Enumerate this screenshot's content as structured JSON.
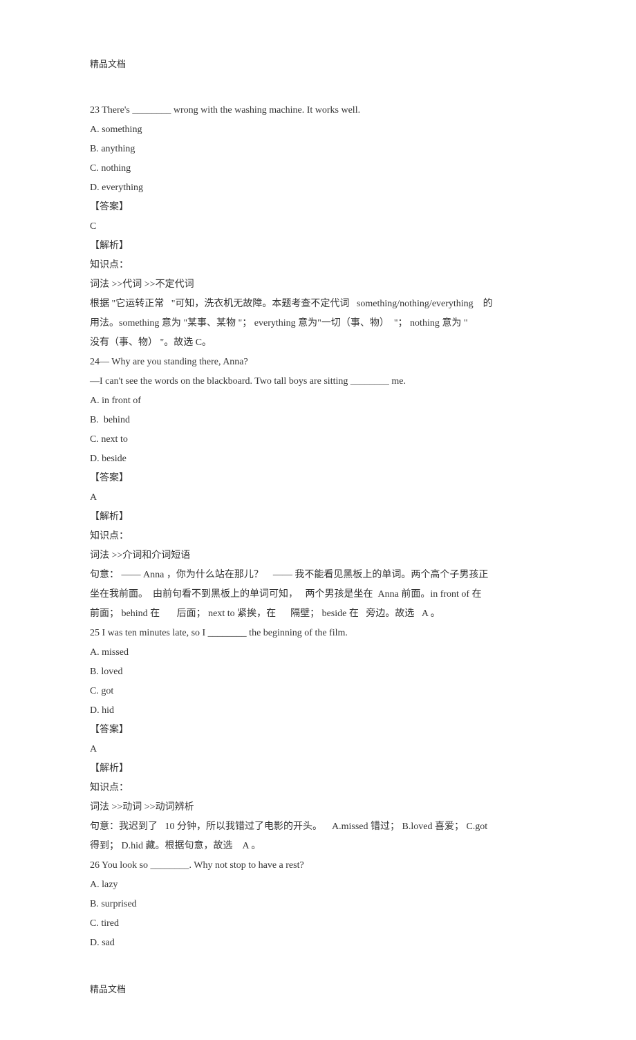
{
  "header": {
    "label": "精品文档"
  },
  "footer": {
    "label": "精品文档"
  },
  "q23": {
    "stem": "23 There's ________ wrong with the washing machine. It works well.",
    "a": "A. something",
    "b": "B. anything",
    "c": "C. nothing",
    "d": "D. everything",
    "ans_label": "【答案】",
    "ans": "C",
    "exp_label": "【解析】",
    "kp_label": "知识点：",
    "kp": "词法 >>代词 >>不定代词",
    "exp_line1": "根据 \"它运转正常   \"可知，洗衣机无故障。本题考查不定代词   something/nothing/everything    的",
    "exp_line2": "用法。something 意为 \"某事、某物 \"； everything 意为\"一切（事、物）  \"； nothing 意为 \"",
    "exp_line3": "没有（事、物） \"。故选 C。"
  },
  "q24": {
    "stem1": "24— Why are you standing there, Anna?",
    "stem2": "—I can't see the words on the blackboard. Two tall boys are sitting ________ me.",
    "a": "A. in front of",
    "b": "B.  behind",
    "c": "C. next to",
    "d": "D. beside",
    "ans_label": "【答案】",
    "ans": "A",
    "exp_label": "【解析】",
    "kp_label": "知识点：",
    "kp": "词法 >>介词和介词短语",
    "exp_line1": "句意： —— Anna ，你为什么站在那儿？    —— 我不能看见黑板上的单词。两个高个子男孩正",
    "exp_line2": "坐在我前面。  由前句看不到黑板上的单词可知，   两个男孩是坐在  Anna 前面。in front of 在",
    "exp_line3": "前面； behind 在       后面； next to 紧挨，在      隔壁； beside 在   旁边。故选   A 。"
  },
  "q25": {
    "stem": "25 I was ten minutes late, so I ________ the beginning of the film.",
    "a": "A. missed",
    "b": "B. loved",
    "c": "C. got",
    "d": "D. hid",
    "ans_label": "【答案】",
    "ans": "A",
    "exp_label": "【解析】",
    "kp_label": "知识点：",
    "kp": "词法 >>动词 >>动词辨析",
    "exp_line1": "句意：我迟到了   10 分钟，所以我错过了电影的开头。    A.missed 错过； B.loved 喜爱； C.got",
    "exp_line2": "得到； D.hid 藏。根据句意，故选    A 。"
  },
  "q26": {
    "stem": "26 You look so ________. Why not stop to have a rest?",
    "a": "A. lazy",
    "b": "B. surprised",
    "c": "C. tired",
    "d": "D. sad"
  }
}
